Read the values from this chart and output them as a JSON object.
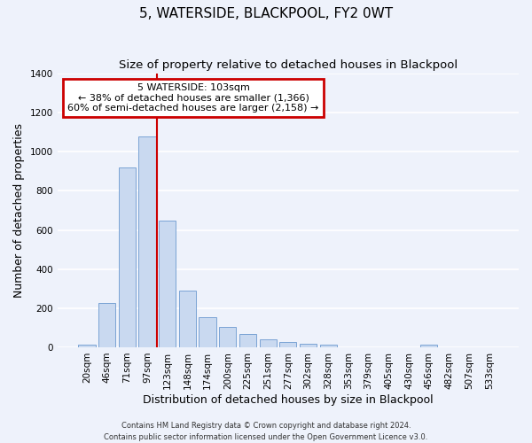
{
  "title": "5, WATERSIDE, BLACKPOOL, FY2 0WT",
  "subtitle": "Size of property relative to detached houses in Blackpool",
  "xlabel": "Distribution of detached houses by size in Blackpool",
  "ylabel": "Number of detached properties",
  "bar_labels": [
    "20sqm",
    "46sqm",
    "71sqm",
    "97sqm",
    "123sqm",
    "148sqm",
    "174sqm",
    "200sqm",
    "225sqm",
    "251sqm",
    "277sqm",
    "302sqm",
    "328sqm",
    "353sqm",
    "379sqm",
    "405sqm",
    "430sqm",
    "456sqm",
    "482sqm",
    "507sqm",
    "533sqm"
  ],
  "bar_values": [
    15,
    225,
    920,
    1080,
    650,
    290,
    155,
    105,
    70,
    40,
    25,
    20,
    15,
    0,
    0,
    0,
    0,
    15,
    0,
    0,
    0
  ],
  "bar_color": "#c9d9f0",
  "bar_edgecolor": "#7ba3d4",
  "vline_x": 3.5,
  "vline_color": "#cc0000",
  "annotation_title": "5 WATERSIDE: 103sqm",
  "annotation_line1": "← 38% of detached houses are smaller (1,366)",
  "annotation_line2": "60% of semi-detached houses are larger (2,158) →",
  "annotation_box_color": "#cc0000",
  "ylim": [
    0,
    1400
  ],
  "yticks": [
    0,
    200,
    400,
    600,
    800,
    1000,
    1200,
    1400
  ],
  "footer1": "Contains HM Land Registry data © Crown copyright and database right 2024.",
  "footer2": "Contains public sector information licensed under the Open Government Licence v3.0.",
  "background_color": "#eef2fb",
  "grid_color": "#ffffff",
  "title_fontsize": 11,
  "subtitle_fontsize": 9.5,
  "axis_label_fontsize": 9,
  "tick_fontsize": 7.5,
  "footer_fontsize": 6
}
